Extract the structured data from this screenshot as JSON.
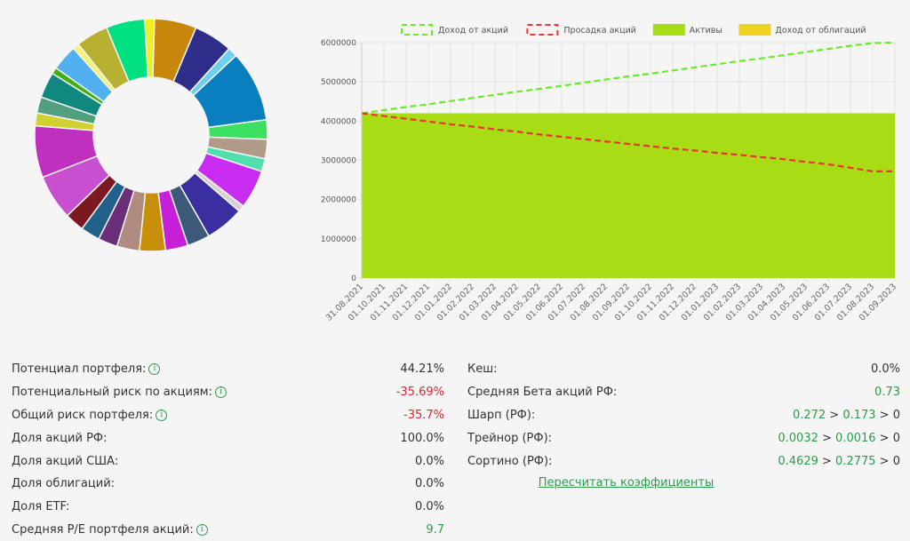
{
  "chart_data": [
    {
      "type": "pie",
      "donut": true,
      "values": [
        6.5,
        6,
        1.5,
        11,
        3,
        3,
        2,
        6,
        1,
        6,
        3.5,
        3.5,
        4,
        3.5,
        3,
        3,
        3,
        7,
        8,
        2,
        2.5,
        4,
        1,
        4,
        1,
        5,
        6,
        1.5
      ],
      "colors": [
        "#c8860a",
        "#2e2e8a",
        "#6fd0ee",
        "#0a7fbf",
        "#3ce060",
        "#b09a88",
        "#50e0b0",
        "#c82cf0",
        "#d8d0d0",
        "#3a2ea0",
        "#3e5a7a",
        "#c820d8",
        "#c8900a",
        "#b08c80",
        "#6a2e7a",
        "#20608a",
        "#7a1a20",
        "#c850d0",
        "#c030c0",
        "#d0d030",
        "#50a080",
        "#108880",
        "#40b010",
        "#50b0f0",
        "#f8f070",
        "#b8b030",
        "#00e080",
        "#f0f020"
      ]
    },
    {
      "type": "line",
      "categories": [
        "31.08.2021",
        "01.10.2021",
        "01.11.2021",
        "01.12.2021",
        "01.01.2022",
        "01.02.2022",
        "01.03.2022",
        "01.04.2022",
        "01.05.2022",
        "01.06.2022",
        "01.07.2022",
        "01.08.2022",
        "01.09.2022",
        "01.10.2022",
        "01.11.2022",
        "01.12.2022",
        "01.01.2023",
        "01.02.2023",
        "01.03.2023",
        "01.04.2023",
        "01.05.2023",
        "01.06.2023",
        "01.07.2023",
        "01.08.2023",
        "01.09.2023"
      ],
      "ylim": [
        0,
        6000000
      ],
      "yticks": [
        "0",
        "1000000",
        "2000000",
        "3000000",
        "4000000",
        "5000000",
        "6000000"
      ],
      "legend_position": "top",
      "series": [
        {
          "name": "Доход от акций",
          "style": "dashed",
          "color": "#66ee22",
          "values": [
            4200000,
            4280000,
            4360000,
            4430000,
            4510000,
            4590000,
            4670000,
            4750000,
            4820000,
            4900000,
            4980000,
            5060000,
            5140000,
            5210000,
            5290000,
            5370000,
            5450000,
            5530000,
            5600000,
            5680000,
            5760000,
            5840000,
            5920000,
            5990000,
            6000000
          ]
        },
        {
          "name": "Просадка акций",
          "style": "dashed",
          "color": "#ee3333",
          "values": [
            4200000,
            4130000,
            4060000,
            3990000,
            3920000,
            3860000,
            3790000,
            3730000,
            3660000,
            3600000,
            3540000,
            3480000,
            3420000,
            3360000,
            3300000,
            3250000,
            3190000,
            3140000,
            3080000,
            3030000,
            2960000,
            2900000,
            2810000,
            2720000,
            2720000
          ]
        },
        {
          "name": "Активы",
          "style": "area",
          "color": "#a8dc14",
          "values": [
            4200000,
            4200000,
            4200000,
            4200000,
            4200000,
            4200000,
            4200000,
            4200000,
            4200000,
            4200000,
            4200000,
            4200000,
            4200000,
            4200000,
            4200000,
            4200000,
            4200000,
            4200000,
            4200000,
            4200000,
            4200000,
            4200000,
            4200000,
            4200000,
            4200000
          ]
        },
        {
          "name": "Доход от облигаций",
          "style": "area",
          "color": "#f0d020",
          "values": [
            0,
            0,
            0,
            0,
            0,
            0,
            0,
            0,
            0,
            0,
            0,
            0,
            0,
            0,
            0,
            0,
            0,
            0,
            0,
            0,
            0,
            0,
            0,
            0,
            0
          ]
        }
      ]
    }
  ],
  "left_stats": [
    {
      "label": "Потенциал портфеля:",
      "info": true,
      "value": "44.21%",
      "tone": "gray"
    },
    {
      "label": "Потенциальный риск по акциям:",
      "info": true,
      "value": "-35.69%",
      "tone": "red"
    },
    {
      "label": "Общий риск портфеля:",
      "info": true,
      "value": "-35.7%",
      "tone": "red"
    },
    {
      "label": "Доля акций РФ:",
      "info": false,
      "value": "100.0%",
      "tone": "gray"
    },
    {
      "label": "Доля акций США:",
      "info": false,
      "value": "0.0%",
      "tone": "gray"
    },
    {
      "label": "Доля облигаций:",
      "info": false,
      "value": "0.0%",
      "tone": "gray"
    },
    {
      "label": "Доля ETF:",
      "info": false,
      "value": "0.0%",
      "tone": "gray"
    },
    {
      "label": "Средняя P/E портфеля акций:",
      "info": true,
      "value": "9.7",
      "tone": "green"
    }
  ],
  "right_stats": [
    {
      "label": "Кеш:",
      "value": "0.0%",
      "tone": "gray"
    },
    {
      "label": "Средняя Бета акций РФ:",
      "value": "0.73",
      "tone": "green"
    },
    {
      "label": "Шарп (РФ):",
      "parts": [
        "0.272",
        "0.173",
        "0"
      ]
    },
    {
      "label": "Трейнор (РФ):",
      "parts": [
        "0.0032",
        "0.0016",
        "0"
      ]
    },
    {
      "label": "Сортино (РФ):",
      "parts": [
        "0.4629",
        "0.2775",
        "0"
      ]
    }
  ],
  "sep": ">",
  "info_glyph": "i",
  "recalc_label": "Пересчитать коэффициенты"
}
